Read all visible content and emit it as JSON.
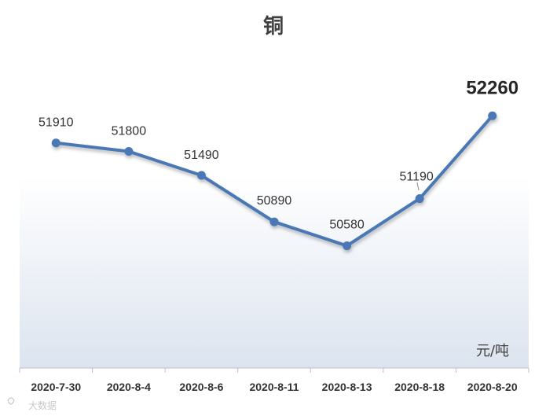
{
  "chart_data": {
    "type": "line",
    "title": "铜",
    "unit_label": "元/吨",
    "categories": [
      "2020-7-30",
      "2020-8-4",
      "2020-8-6",
      "2020-8-11",
      "2020-8-13",
      "2020-8-18",
      "2020-8-20"
    ],
    "values": [
      51910,
      51800,
      51490,
      50890,
      50580,
      51190,
      52260
    ],
    "data_labels": [
      "51910",
      "51800",
      "51490",
      "50890",
      "50580",
      "51190",
      "52260"
    ],
    "ylim": [
      49000,
      52700
    ],
    "grid": false,
    "legend": "none",
    "line_color": "#4a78b4",
    "plot_gradient_top": "#ffffff",
    "plot_gradient_bottom": "#dce4ef"
  },
  "watermark": "大数据"
}
